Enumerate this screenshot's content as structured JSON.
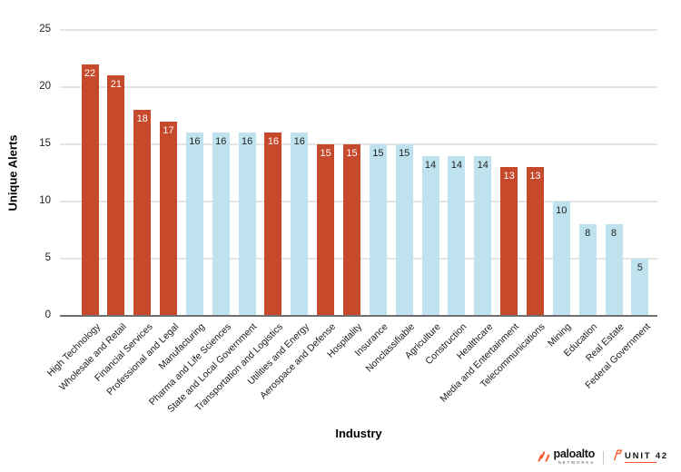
{
  "chart_data": {
    "type": "bar",
    "title": "",
    "xlabel": "Industry",
    "ylabel": "Unique Alerts",
    "ylim": [
      0,
      25
    ],
    "yticks": [
      0,
      5,
      10,
      15,
      20,
      25
    ],
    "grid": true,
    "legend": "none",
    "categories": [
      "High Technology",
      "Wholesale and Retail",
      "Financial Services",
      "Professional and Legal",
      "Manufacturing",
      "Pharma and Life Sciences",
      "State and Local Government",
      "Transportation and Logistics",
      "Utilities and Energy",
      "Aerospace and Defense",
      "Hospitality",
      "Insurance",
      "Nonclassifiable",
      "Agriculture",
      "Construction",
      "Healthcare",
      "Media and Entertainment",
      "Telecommunications",
      "Mining",
      "Education",
      "Real Estate",
      "Federal Government"
    ],
    "values": [
      22,
      21,
      18,
      17,
      16,
      16,
      16,
      16,
      16,
      15,
      15,
      15,
      15,
      14,
      14,
      14,
      13,
      13,
      10,
      8,
      8,
      5
    ],
    "bar_color_keys": [
      "red",
      "red",
      "red",
      "red",
      "blue",
      "blue",
      "blue",
      "red",
      "blue",
      "red",
      "red",
      "blue",
      "blue",
      "blue",
      "blue",
      "blue",
      "red",
      "red",
      "blue",
      "blue",
      "blue",
      "blue"
    ],
    "palette": {
      "red": "#C6492C",
      "blue": "#BEE3EF"
    },
    "value_label_colors": {
      "red": "#FFFFFF",
      "blue": "#1F1F1F"
    }
  },
  "footer": {
    "paloalto_brand": "paloalto",
    "paloalto_sub": "NETWORKS",
    "unit42_brand": "UNIT 42",
    "accent_color": "#FA582D"
  }
}
